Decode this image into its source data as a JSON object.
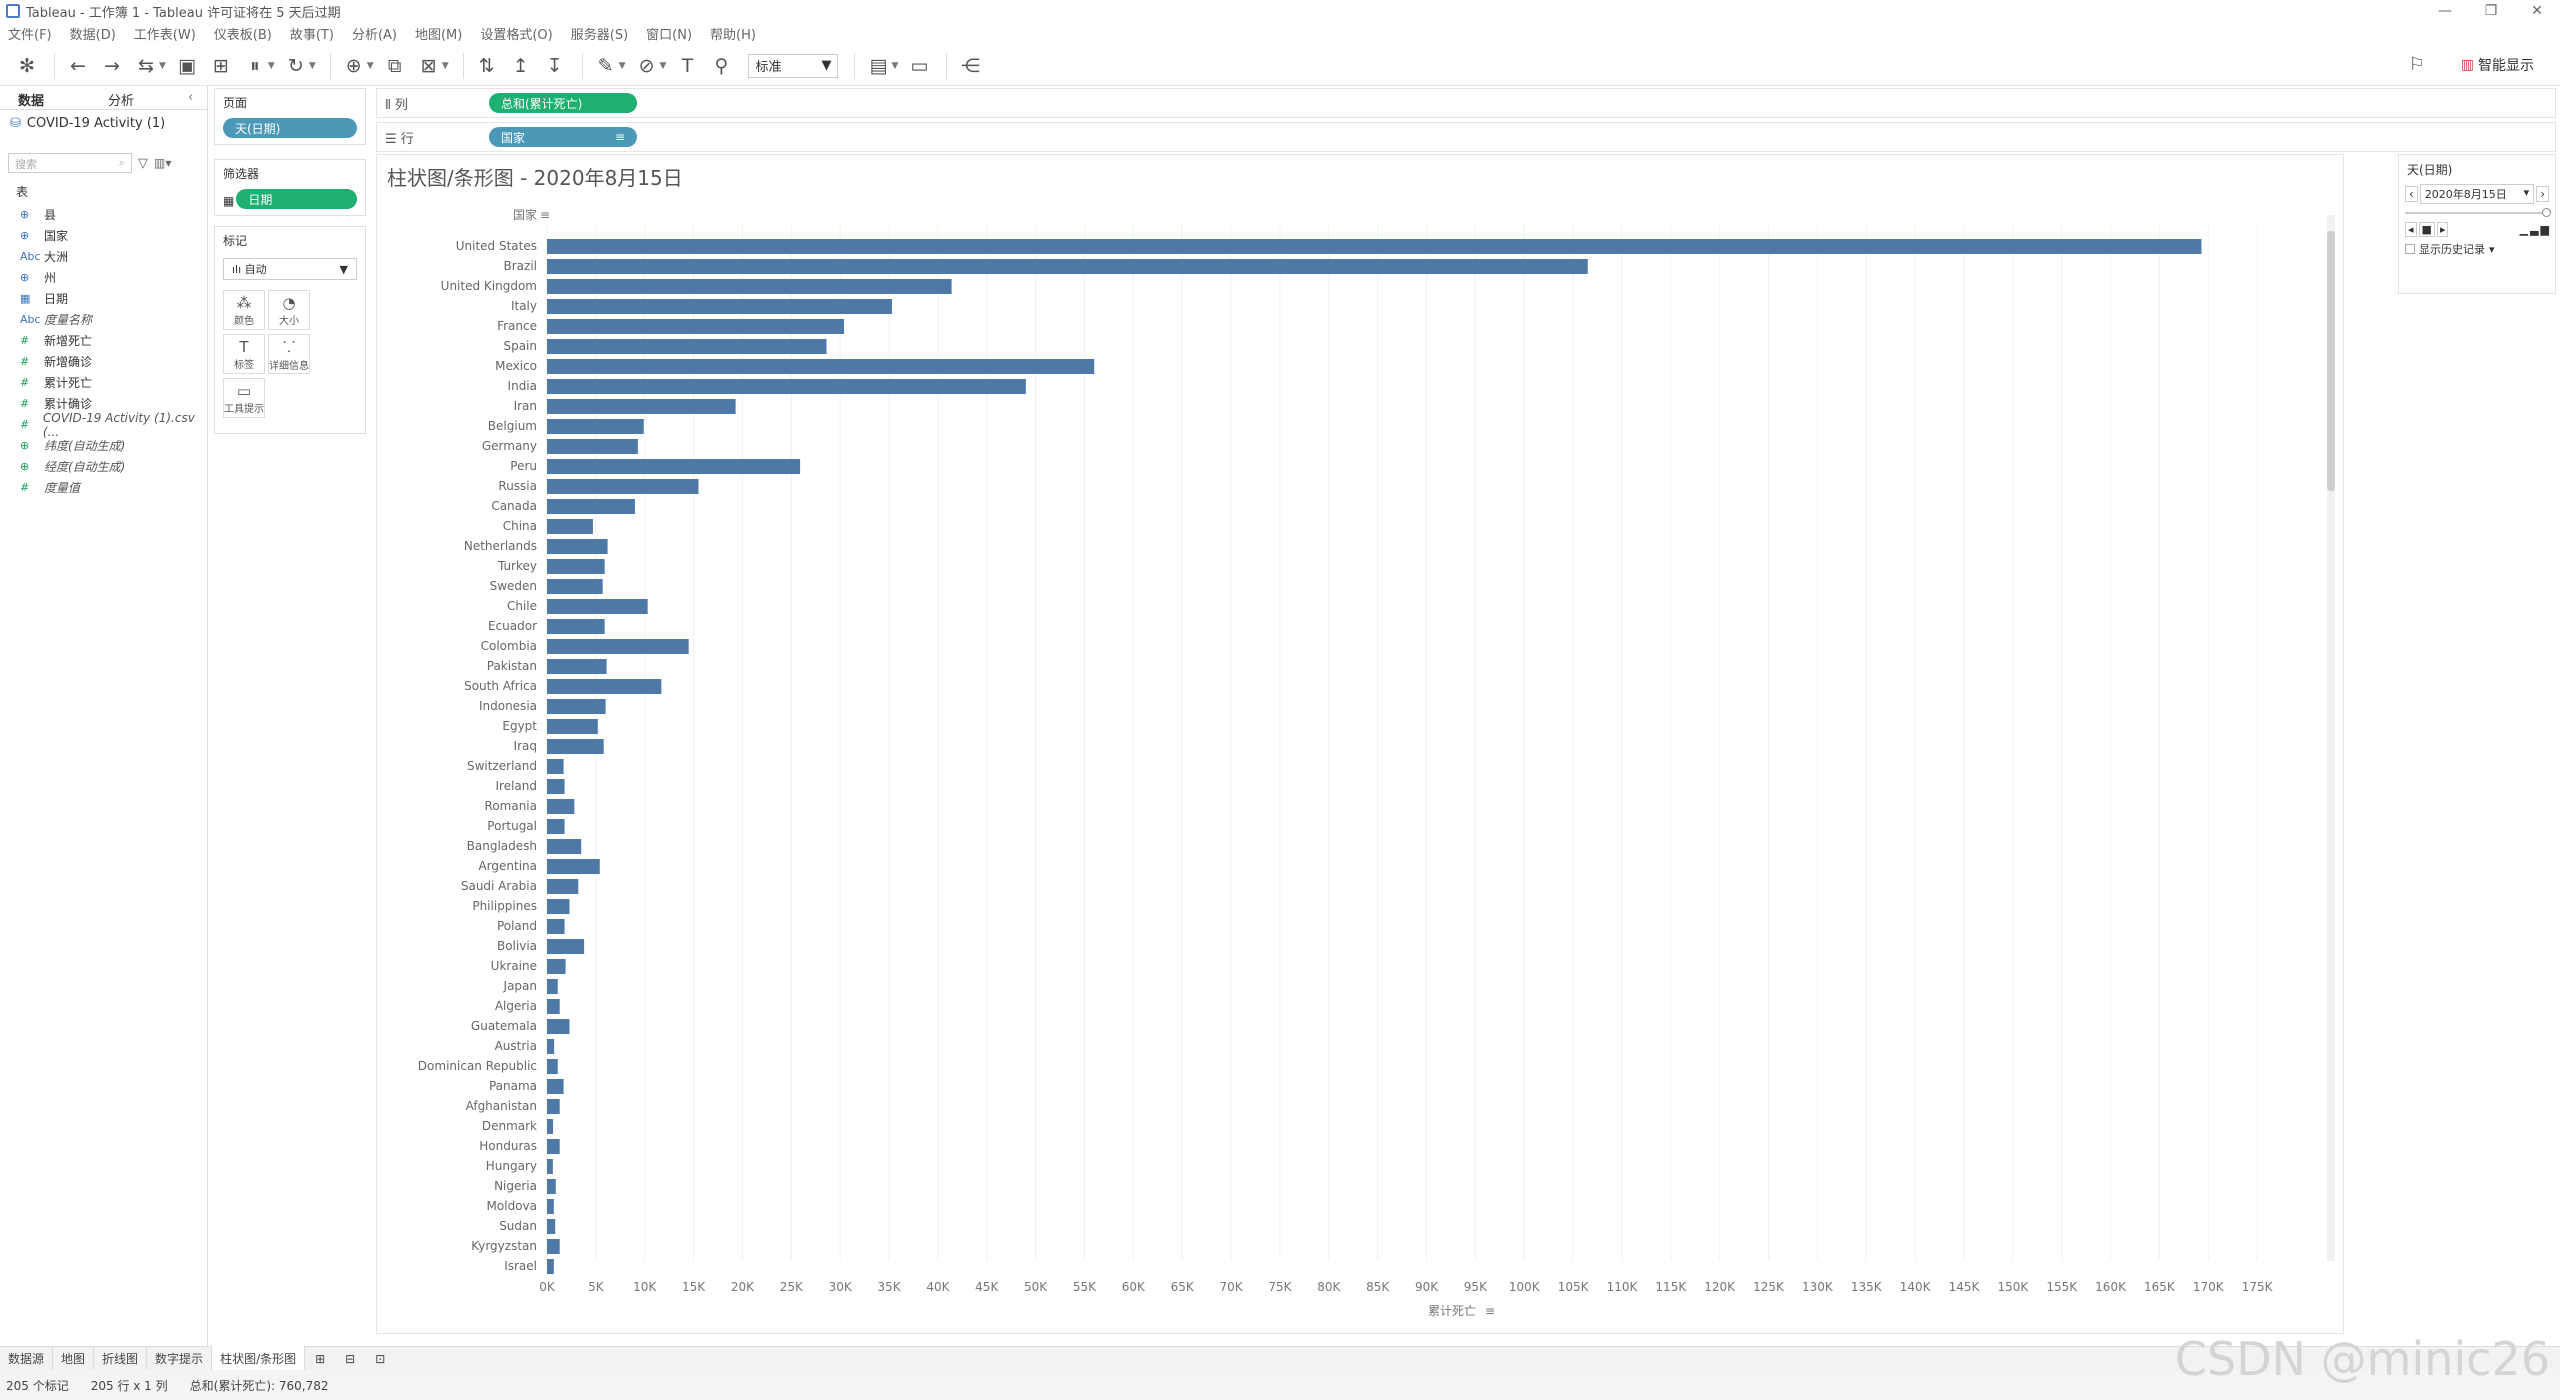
{
  "window": {
    "title": "Tableau - 工作簿 1 - Tableau 许可证将在 5 天后过期"
  },
  "menu": [
    "文件(F)",
    "数据(D)",
    "工作表(W)",
    "仪表板(B)",
    "故事(T)",
    "分析(A)",
    "地图(M)",
    "设置格式(O)",
    "服务器(S)",
    "窗口(N)",
    "帮助(H)"
  ],
  "toolbar": {
    "fit_label": "标准",
    "smart_show": "智能显示"
  },
  "left_pane": {
    "tab_data": "数据",
    "tab_analysis": "分析",
    "datasource": "COVID-19 Activity (1)",
    "search_placeholder": "搜索",
    "table_header": "表",
    "fields": [
      {
        "type": "⊕",
        "name": "县",
        "cls": "blue"
      },
      {
        "type": "⊕",
        "name": "国家",
        "cls": "blue"
      },
      {
        "type": "Abc",
        "name": "大洲",
        "cls": "blue"
      },
      {
        "type": "⊕",
        "name": "州",
        "cls": "blue"
      },
      {
        "type": "▦",
        "name": "日期",
        "cls": "blue"
      },
      {
        "type": "Abc",
        "name": "度量名称",
        "cls": "blue italic"
      },
      {
        "type": "#",
        "name": "新增死亡",
        "cls": "green"
      },
      {
        "type": "#",
        "name": "新增确诊",
        "cls": "green"
      },
      {
        "type": "#",
        "name": "累计死亡",
        "cls": "green"
      },
      {
        "type": "#",
        "name": "累计确诊",
        "cls": "green"
      },
      {
        "type": "#",
        "name": "COVID-19 Activity (1).csv (...",
        "cls": "green italic"
      },
      {
        "type": "⊕",
        "name": "纬度(自动生成)",
        "cls": "green italic"
      },
      {
        "type": "⊕",
        "name": "经度(自动生成)",
        "cls": "green italic"
      },
      {
        "type": "#",
        "name": "度量值",
        "cls": "green italic"
      }
    ]
  },
  "pages_card": {
    "title": "页面",
    "pill": "天(日期)"
  },
  "filters_card": {
    "title": "筛选器",
    "pill": "日期"
  },
  "marks_card": {
    "title": "标记",
    "type": "自动",
    "buttons": [
      {
        "icon": "⁂",
        "label": "颜色"
      },
      {
        "icon": "◔",
        "label": "大小"
      },
      {
        "icon": "T",
        "label": "标签"
      },
      {
        "icon": "⸪",
        "label": "详细信息"
      },
      {
        "icon": "▭",
        "label": "工具提示"
      }
    ]
  },
  "shelves": {
    "columns_label": "列",
    "columns_pill": "总和(累计死亡)",
    "rows_label": "行",
    "rows_pill": "国家"
  },
  "viz": {
    "title": "柱状图/条形图 - 2020年8月15日"
  },
  "right_pane": {
    "title": "天(日期)",
    "date": "2020年8月15日",
    "history": "显示历史记录"
  },
  "sheet_tabs": [
    "数据源",
    "地图",
    "折线图",
    "数字提示",
    "柱状图/条形图"
  ],
  "status": {
    "marks": "205 个标记",
    "dims": "205 行 x 1 列",
    "sum": "总和(累计死亡): 760,782"
  },
  "watermark": "CSDN @minic26",
  "colors": {
    "bar": "#4e79a7",
    "pill_blue": "#4c98b7",
    "pill_green": "#1db071"
  },
  "chart_data": {
    "type": "bar",
    "orientation": "horizontal",
    "xlabel": "累计死亡",
    "ylabel": "国家",
    "xlim": [
      0,
      177000
    ],
    "xticks": [
      "0K",
      "5K",
      "10K",
      "15K",
      "20K",
      "25K",
      "30K",
      "35K",
      "40K",
      "45K",
      "50K",
      "55K",
      "60K",
      "65K",
      "70K",
      "75K",
      "80K",
      "85K",
      "90K",
      "95K",
      "100K",
      "105K",
      "110K",
      "115K",
      "120K",
      "125K",
      "130K",
      "135K",
      "140K",
      "145K",
      "150K",
      "155K",
      "160K",
      "165K",
      "170K",
      "175K"
    ],
    "categories": [
      "United States",
      "Brazil",
      "United Kingdom",
      "Italy",
      "France",
      "Spain",
      "Mexico",
      "India",
      "Iran",
      "Belgium",
      "Germany",
      "Peru",
      "Russia",
      "Canada",
      "China",
      "Netherlands",
      "Turkey",
      "Sweden",
      "Chile",
      "Ecuador",
      "Colombia",
      "Pakistan",
      "South Africa",
      "Indonesia",
      "Egypt",
      "Iraq",
      "Switzerland",
      "Ireland",
      "Romania",
      "Portugal",
      "Bangladesh",
      "Argentina",
      "Saudi Arabia",
      "Philippines",
      "Poland",
      "Bolivia",
      "Ukraine",
      "Japan",
      "Algeria",
      "Guatemala",
      "Austria",
      "Dominican Republic",
      "Panama",
      "Afghanistan",
      "Denmark",
      "Honduras",
      "Hungary",
      "Nigeria",
      "Moldova",
      "Sudan",
      "Kyrgyzstan",
      "Israel"
    ],
    "values": [
      169300,
      106500,
      41400,
      35300,
      30400,
      28600,
      56000,
      49000,
      19300,
      9900,
      9300,
      25900,
      15500,
      9000,
      4700,
      6200,
      5900,
      5700,
      10300,
      5900,
      14500,
      6100,
      11700,
      6000,
      5200,
      5800,
      1700,
      1800,
      2800,
      1800,
      3500,
      5400,
      3200,
      2300,
      1800,
      3800,
      1900,
      1100,
      1300,
      2300,
      730,
      1100,
      1700,
      1300,
      620,
      1300,
      600,
      900,
      700,
      840,
      1300,
      700
    ]
  }
}
